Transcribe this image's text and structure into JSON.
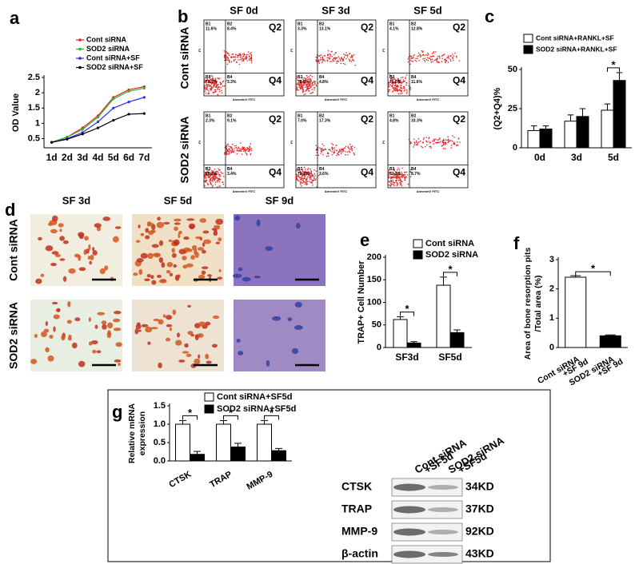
{
  "panel_labels": [
    "a",
    "b",
    "c",
    "d",
    "e",
    "f",
    "g"
  ],
  "chart_data": [
    {
      "type": "line",
      "ylabel": "OD Value",
      "categories": [
        "1d",
        "2d",
        "3d",
        "4d",
        "5d",
        "6d",
        "7d"
      ],
      "ylim": [
        0.2,
        2.5
      ],
      "yticks": [
        0.5,
        1,
        1.5,
        2,
        2.5
      ],
      "series": [
        {
          "name": "Cont siRNA",
          "color": "#e8231f",
          "values": [
            0.38,
            0.55,
            0.85,
            1.25,
            1.85,
            2.1,
            2.2
          ]
        },
        {
          "name": "SOD2 siRNA",
          "color": "#2db52d",
          "values": [
            0.38,
            0.55,
            0.8,
            1.2,
            1.8,
            2.05,
            2.15
          ]
        },
        {
          "name": "Cont siRNA+SF",
          "color": "#2e2ee6",
          "values": [
            0.38,
            0.5,
            0.7,
            1.05,
            1.5,
            1.7,
            1.85
          ]
        },
        {
          "name": "SOD2 siRNA+SF",
          "color": "#000000",
          "values": [
            0.38,
            0.48,
            0.65,
            0.85,
            1.1,
            1.3,
            1.32
          ]
        }
      ]
    },
    {
      "type": "bar",
      "ylabel": "(Q2+Q4)%",
      "categories": [
        "0d",
        "3d",
        "5d"
      ],
      "ylim": [
        0,
        50
      ],
      "yticks": [
        0,
        25,
        50
      ],
      "significance": [
        null,
        null,
        "*"
      ],
      "series": [
        {
          "name": "Cont siRNA+RANKL+SF",
          "color": "#ffffff",
          "values": [
            11,
            17,
            24
          ],
          "errors": [
            3,
            4,
            4
          ]
        },
        {
          "name": "SOD2 siRNA+RANKL+SF",
          "color": "#000000",
          "values": [
            12,
            20,
            43
          ],
          "errors": [
            2,
            5,
            5
          ]
        }
      ]
    },
    {
      "type": "bar",
      "ylabel": "TRAP+ Cell Number",
      "categories": [
        "SF3d",
        "SF5d"
      ],
      "ylim": [
        0,
        200
      ],
      "yticks": [
        0,
        50,
        100,
        150,
        200
      ],
      "significance": [
        "*",
        "*"
      ],
      "series": [
        {
          "name": "Cont siRNA",
          "color": "#ffffff",
          "values": [
            62,
            138
          ],
          "errors": [
            6,
            18
          ]
        },
        {
          "name": "SOD2 siRNA",
          "color": "#000000",
          "values": [
            10,
            33
          ],
          "errors": [
            3,
            6
          ]
        }
      ]
    },
    {
      "type": "bar",
      "ylabel": [
        "Area of bone resorption pits",
        "/Total area (%)"
      ],
      "categories": [
        [
          "Cont siRNA",
          "+SF 9d"
        ],
        [
          "SOD2 siRNA",
          "+SF 9d"
        ]
      ],
      "ylim": [
        0,
        3
      ],
      "yticks": [
        0,
        1,
        2,
        3
      ],
      "significance": "*",
      "values": [
        2.4,
        0.4
      ],
      "errors": [
        0.05,
        0.03
      ],
      "colors": [
        "#ffffff",
        "#000000"
      ]
    },
    {
      "type": "bar",
      "ylabel": [
        "Relative mRNA",
        "expression"
      ],
      "categories": [
        "CTSK",
        "TRAP",
        "MMP-9"
      ],
      "ylim": [
        0,
        1.5
      ],
      "yticks": [
        {
          "value": 0,
          "label": "0.0"
        },
        0.5,
        {
          "value": 1,
          "label": "1.0"
        },
        1.5
      ],
      "significance": [
        "*",
        "*",
        "*"
      ],
      "series": [
        {
          "name": "Cont siRNA+SF5d",
          "color": "#ffffff",
          "values": [
            1,
            1,
            1
          ],
          "errors": [
            0.1,
            0.1,
            0.1
          ]
        },
        {
          "name": "SOD2 siRNA+SF5d",
          "color": "#000000",
          "values": [
            0.18,
            0.38,
            0.28
          ],
          "errors": [
            0.08,
            0.1,
            0.06
          ]
        }
      ]
    }
  ],
  "flow": {
    "columns": [
      "SF 0d",
      "SF 3d",
      "SF 5d"
    ],
    "rows": [
      "Cont siRNA",
      "SOD2 siRNA"
    ],
    "quadrants": [
      "Q2",
      "Q4"
    ],
    "gates": [
      "B1",
      "B2",
      "B3",
      "B4"
    ],
    "xlabel": "AnnexinV FITC",
    "ylabel": "PI",
    "percent": [
      [
        [
          "11.6%",
          "8.4%",
          "74.7%",
          "3.3%"
        ],
        [
          "3.3%",
          "13.1%",
          "78.8%",
          "4.8%"
        ],
        [
          "4.1%",
          "12.8%",
          "71.6%",
          "11.6%"
        ]
      ],
      [
        [
          "2.3%",
          "9.1%",
          "85.2%",
          "3.4%"
        ],
        [
          "7.0%",
          "17.3%",
          "72.1%",
          "3.6%"
        ],
        [
          "4.8%",
          "33.3%",
          "53.3%",
          "8.7%"
        ]
      ]
    ]
  },
  "micrographs": {
    "columns": [
      "SF 3d",
      "SF 5d",
      "SF 9d"
    ],
    "rows": [
      "Cont siRNA",
      "SOD2 siRNA"
    ]
  },
  "blot": {
    "lanes": [
      [
        "Cont siRNA",
        "+SF5d"
      ],
      [
        "SOD2 siRNA",
        "+SF5d"
      ]
    ],
    "proteins": [
      "CTSK",
      "TRAP",
      "MMP-9",
      "β-actin"
    ],
    "sizes": [
      "34KD",
      "37KD",
      "92KD",
      "43KD"
    ]
  }
}
